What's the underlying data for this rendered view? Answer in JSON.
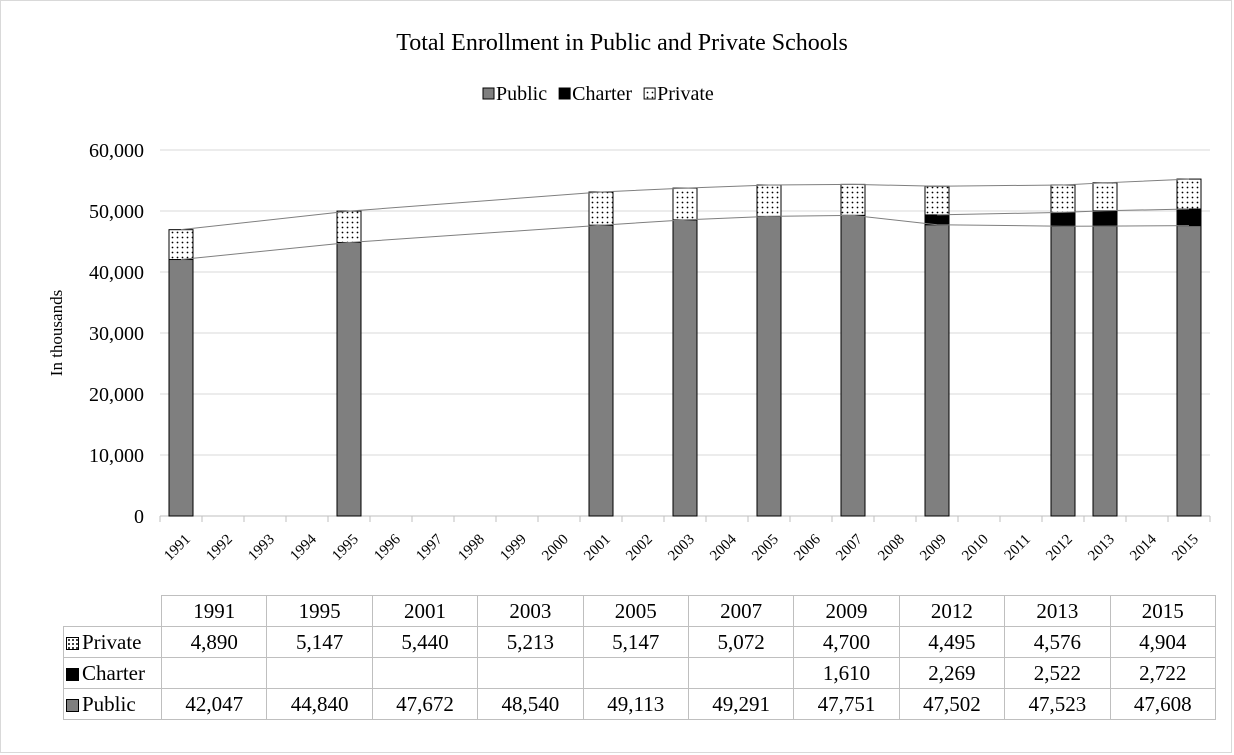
{
  "chart_data": {
    "type": "bar",
    "stacked": true,
    "title": "Total Enrollment in Public and Private Schools",
    "ylabel": "In thousands",
    "xlabel": "",
    "ylim": [
      0,
      60000
    ],
    "yticks": [
      "0",
      "10,000",
      "20,000",
      "30,000",
      "40,000",
      "50,000",
      "60,000"
    ],
    "legend_position": "top",
    "grid": true,
    "x_axis_years": [
      "1991",
      "1992",
      "1993",
      "1994",
      "1995",
      "1996",
      "1997",
      "1998",
      "1999",
      "2000",
      "2001",
      "2002",
      "2003",
      "2004",
      "2005",
      "2006",
      "2007",
      "2008",
      "2009",
      "2010",
      "2011",
      "2012",
      "2013",
      "2014",
      "2015"
    ],
    "bar_positions": [
      0,
      4,
      10,
      12,
      14,
      16,
      18,
      21,
      22,
      24
    ],
    "categories": [
      "1991",
      "1995",
      "2001",
      "2003",
      "2005",
      "2007",
      "2009",
      "2012",
      "2013",
      "2015"
    ],
    "series": [
      {
        "name": "Public",
        "color": "#7f7f7f",
        "values": [
          42047,
          44840,
          47672,
          48540,
          49113,
          49291,
          47751,
          47502,
          47523,
          47608
        ]
      },
      {
        "name": "Charter",
        "color": "#000000",
        "values": [
          null,
          null,
          null,
          null,
          null,
          null,
          1610,
          2269,
          2522,
          2722
        ]
      },
      {
        "name": "Private",
        "color": "#ffffff",
        "pattern": "dots",
        "values": [
          4890,
          5147,
          5440,
          5213,
          5147,
          5072,
          4700,
          4495,
          4576,
          4904
        ]
      }
    ],
    "table": {
      "header": [
        "1991",
        "1995",
        "2001",
        "2003",
        "2005",
        "2007",
        "2009",
        "2012",
        "2013",
        "2015"
      ],
      "rows": [
        {
          "label": "Private",
          "cells": [
            "4,890",
            "5,147",
            "5,440",
            "5,213",
            "5,147",
            "5,072",
            "4,700",
            "4,495",
            "4,576",
            "4,904"
          ]
        },
        {
          "label": "Charter",
          "cells": [
            "",
            "",
            "",
            "",
            "",
            "",
            "1,610",
            "2,269",
            "2,522",
            "2,722"
          ]
        },
        {
          "label": "Public",
          "cells": [
            "42,047",
            "44,840",
            "47,672",
            "48,540",
            "49,113",
            "49,291",
            "47,751",
            "47,502",
            "47,523",
            "47,608"
          ]
        }
      ]
    }
  }
}
